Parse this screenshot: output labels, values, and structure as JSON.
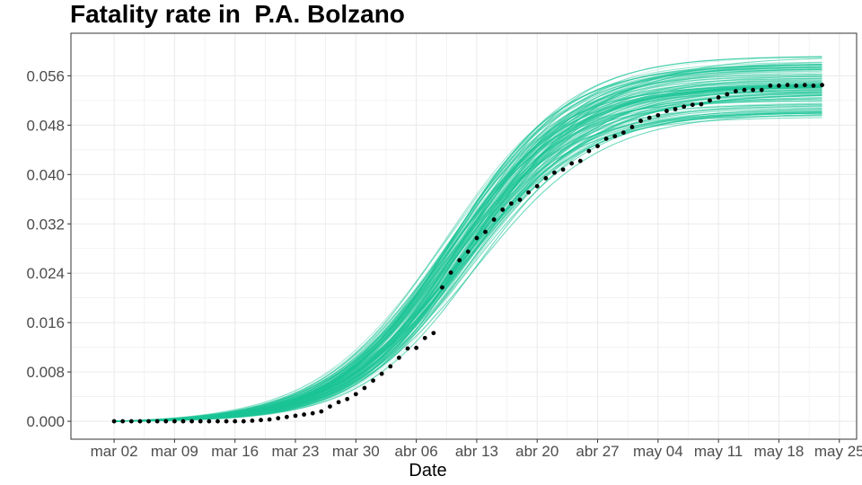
{
  "chart_data": {
    "type": "line",
    "title": "Fatality rate in  P.A. Bolzano",
    "xlabel": "Date",
    "ylabel": "",
    "x_ticks": [
      "mar 02",
      "mar 09",
      "mar 16",
      "mar 23",
      "mar 30",
      "abr 06",
      "abr 13",
      "abr 20",
      "abr 27",
      "may 04",
      "may 11",
      "may 18",
      "may 25"
    ],
    "y_ticks": [
      "0.000",
      "0.008",
      "0.016",
      "0.024",
      "0.032",
      "0.040",
      "0.048",
      "0.056"
    ],
    "xlim": [
      "2020-02-26",
      "2020-05-27"
    ],
    "ylim": [
      -0.0029,
      0.0629
    ],
    "grid": true,
    "legend": "none",
    "colors": {
      "simulations": "#1bc496",
      "observed": "#000000",
      "grid": "#ebebeb",
      "panel_border": "#333333"
    },
    "series": [
      {
        "type": "scatter",
        "x": [
          "2020-03-02",
          "2020-03-03",
          "2020-03-04",
          "2020-03-05",
          "2020-03-06",
          "2020-03-07",
          "2020-03-08",
          "2020-03-09",
          "2020-03-10",
          "2020-03-11",
          "2020-03-12",
          "2020-03-13",
          "2020-03-14",
          "2020-03-15",
          "2020-03-16",
          "2020-03-17",
          "2020-03-18",
          "2020-03-19",
          "2020-03-20",
          "2020-03-21",
          "2020-03-22",
          "2020-03-23",
          "2020-03-24",
          "2020-03-25",
          "2020-03-26",
          "2020-03-27",
          "2020-03-28",
          "2020-03-29",
          "2020-03-30",
          "2020-03-31",
          "2020-04-01",
          "2020-04-02",
          "2020-04-03",
          "2020-04-04",
          "2020-04-05",
          "2020-04-06",
          "2020-04-07",
          "2020-04-08",
          "2020-04-09",
          "2020-04-10",
          "2020-04-11",
          "2020-04-12",
          "2020-04-13",
          "2020-04-14",
          "2020-04-15",
          "2020-04-16",
          "2020-04-17",
          "2020-04-18",
          "2020-04-19",
          "2020-04-20",
          "2020-04-21",
          "2020-04-22",
          "2020-04-23",
          "2020-04-24",
          "2020-04-25",
          "2020-04-26",
          "2020-04-27",
          "2020-04-28",
          "2020-04-29",
          "2020-04-30",
          "2020-05-01",
          "2020-05-02",
          "2020-05-03",
          "2020-05-04",
          "2020-05-05",
          "2020-05-06",
          "2020-05-07",
          "2020-05-08",
          "2020-05-09",
          "2020-05-10",
          "2020-05-11",
          "2020-05-12",
          "2020-05-13",
          "2020-05-14",
          "2020-05-15",
          "2020-05-16",
          "2020-05-17",
          "2020-05-18",
          "2020-05-19",
          "2020-05-20",
          "2020-05-21",
          "2020-05-22",
          "2020-05-23"
        ],
        "y": [
          0,
          0,
          0,
          0,
          0,
          0,
          0,
          0,
          0,
          0,
          0,
          0,
          0,
          0,
          0,
          0,
          0.0001,
          0.0002,
          0.0003,
          0.0005,
          0.0007,
          0.0009,
          0.0011,
          0.0013,
          0.0016,
          0.0024,
          0.0031,
          0.0036,
          0.0044,
          0.0054,
          0.0066,
          0.0077,
          0.0089,
          0.0103,
          0.0118,
          0.0119,
          0.0135,
          0.0143,
          0.0217,
          0.0241,
          0.0261,
          0.0275,
          0.0297,
          0.0307,
          0.0327,
          0.0343,
          0.0353,
          0.0359,
          0.0371,
          0.0381,
          0.0394,
          0.0403,
          0.0408,
          0.0418,
          0.0422,
          0.0438,
          0.0446,
          0.0458,
          0.0462,
          0.0468,
          0.0477,
          0.0487,
          0.0492,
          0.0496,
          0.0503,
          0.0506,
          0.051,
          0.0513,
          0.0514,
          0.052,
          0.0525,
          0.053,
          0.0535,
          0.0537,
          0.0537,
          0.0537,
          0.0544,
          0.0544,
          0.0545,
          0.0544,
          0.0545,
          0.0544,
          0.0545
        ]
      }
    ],
    "simulation_band": {
      "count": 120,
      "x_start": "2020-03-02",
      "x_end": "2020-05-23",
      "center_plateau": 0.0545,
      "plateau_spread": [
        0.0495,
        0.0595
      ],
      "midpoint_date": "2020-04-11",
      "midpoint_spread_days": 3.5
    }
  }
}
